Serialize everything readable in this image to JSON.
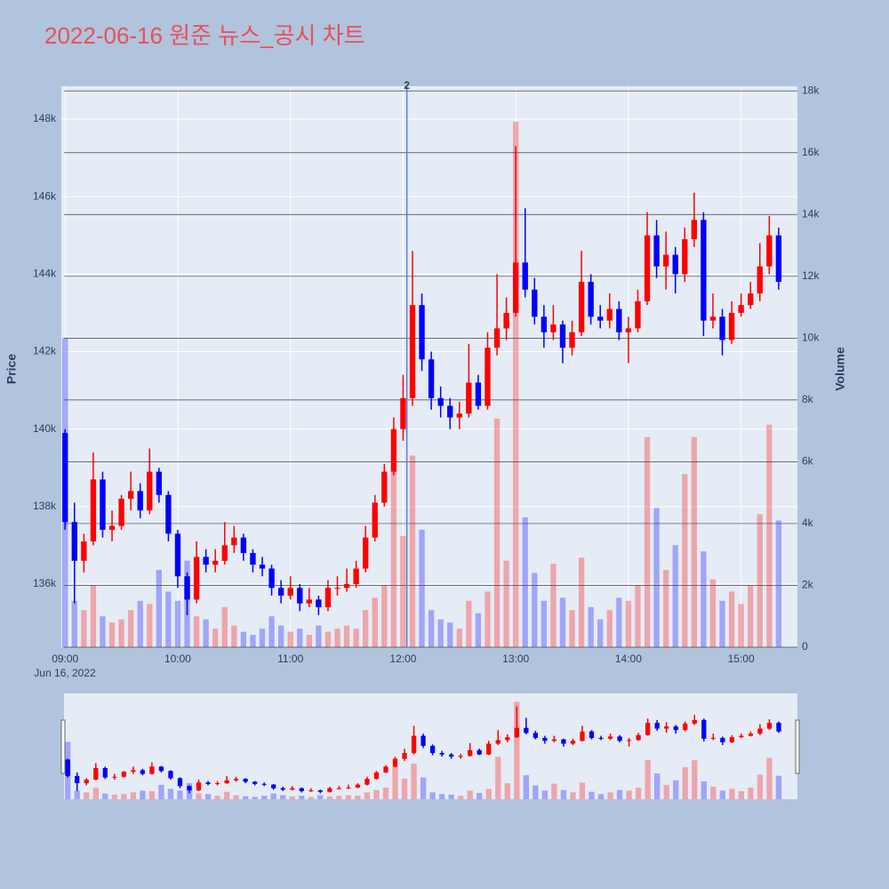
{
  "chart_data": {
    "type": "candlestick",
    "title": "2022-06-16 원준 뉴스_공시 차트",
    "y_title": "Price",
    "y2_title": "Volume",
    "x_sublabel": "Jun 16, 2022",
    "x": [
      "09:00",
      "09:05",
      "09:10",
      "09:15",
      "09:20",
      "09:25",
      "09:30",
      "09:35",
      "09:40",
      "09:45",
      "09:50",
      "09:55",
      "10:00",
      "10:05",
      "10:10",
      "10:15",
      "10:20",
      "10:25",
      "10:30",
      "10:35",
      "10:40",
      "10:45",
      "10:50",
      "10:55",
      "11:00",
      "11:05",
      "11:10",
      "11:15",
      "11:20",
      "11:25",
      "11:30",
      "11:35",
      "11:40",
      "11:45",
      "11:50",
      "11:55",
      "12:00",
      "12:05",
      "12:10",
      "12:15",
      "12:20",
      "12:25",
      "12:30",
      "12:35",
      "12:40",
      "12:45",
      "12:50",
      "12:55",
      "13:00",
      "13:05",
      "13:10",
      "13:15",
      "13:20",
      "13:25",
      "13:30",
      "13:35",
      "13:40",
      "13:45",
      "13:50",
      "13:55",
      "14:00",
      "14:05",
      "14:10",
      "14:15",
      "14:20",
      "14:25",
      "14:30",
      "14:35",
      "14:40",
      "14:45",
      "14:50",
      "14:55",
      "15:00",
      "15:05",
      "15:10",
      "15:15",
      "15:20"
    ],
    "open": [
      139900,
      137600,
      136600,
      137100,
      138700,
      137400,
      137500,
      138200,
      138400,
      137900,
      138900,
      138300,
      137300,
      136200,
      135600,
      136700,
      136500,
      136600,
      137000,
      137200,
      136800,
      136500,
      136400,
      135900,
      135700,
      135900,
      135500,
      135600,
      135400,
      135900,
      135900,
      136000,
      136400,
      137200,
      138100,
      138900,
      140000,
      140800,
      143200,
      141800,
      140800,
      140600,
      140300,
      140400,
      141200,
      140600,
      142100,
      142600,
      143000,
      144300,
      143600,
      142900,
      142500,
      142700,
      142100,
      142500,
      143800,
      142900,
      142800,
      143100,
      142500,
      142600,
      143300,
      145000,
      144200,
      144500,
      144000,
      144900,
      145400,
      142800,
      142900,
      142300,
      143000,
      143200,
      143500,
      144200,
      145000
    ],
    "high": [
      140000,
      138100,
      137300,
      139400,
      138900,
      137900,
      138300,
      138900,
      138600,
      139500,
      139000,
      138400,
      137400,
      136300,
      137100,
      136900,
      136900,
      137600,
      137500,
      137300,
      136900,
      136700,
      136500,
      136100,
      136200,
      136000,
      135900,
      135700,
      136100,
      136200,
      136400,
      136600,
      137500,
      138300,
      139100,
      140300,
      141400,
      144600,
      143500,
      142000,
      141100,
      140800,
      140700,
      142200,
      141400,
      142500,
      144000,
      143400,
      147300,
      145700,
      143900,
      143200,
      143200,
      142800,
      142800,
      144600,
      144000,
      143200,
      143500,
      143300,
      142900,
      143600,
      145600,
      145400,
      145100,
      144700,
      145200,
      146100,
      145600,
      143500,
      143100,
      143300,
      143500,
      143800,
      144800,
      145500,
      145200
    ],
    "low": [
      137400,
      135500,
      136300,
      137000,
      137200,
      137100,
      137400,
      137900,
      137700,
      137800,
      138100,
      137100,
      135900,
      135200,
      135500,
      136300,
      136300,
      136500,
      136800,
      136600,
      136300,
      136200,
      135700,
      135500,
      135600,
      135300,
      135400,
      135200,
      135300,
      135700,
      135800,
      135900,
      136300,
      137100,
      138000,
      138800,
      139700,
      140600,
      141500,
      140500,
      140300,
      140000,
      140000,
      140300,
      140500,
      140500,
      141900,
      142300,
      142900,
      143400,
      142700,
      142100,
      142300,
      141700,
      141900,
      142400,
      142700,
      142600,
      142600,
      142300,
      141700,
      142500,
      143200,
      143900,
      143600,
      143500,
      143800,
      144700,
      142400,
      142600,
      141900,
      142200,
      142900,
      143100,
      143300,
      144000,
      143600
    ],
    "close": [
      137600,
      136600,
      137100,
      138700,
      137400,
      137500,
      138200,
      138400,
      137900,
      138900,
      138300,
      137300,
      136200,
      135600,
      136700,
      136500,
      136600,
      137000,
      137200,
      136800,
      136500,
      136400,
      135900,
      135700,
      135900,
      135500,
      135600,
      135400,
      135900,
      135900,
      136000,
      136400,
      137200,
      138100,
      138900,
      140000,
      140800,
      143200,
      141800,
      140800,
      140600,
      140300,
      140400,
      141200,
      140600,
      142100,
      142600,
      143000,
      144300,
      143600,
      142900,
      142500,
      142700,
      142100,
      142500,
      143800,
      142900,
      142800,
      143100,
      142500,
      142600,
      143300,
      145000,
      144200,
      144500,
      144000,
      144900,
      145400,
      142800,
      142900,
      142300,
      143000,
      143200,
      143500,
      144200,
      145000,
      143800
    ],
    "volume": [
      10000,
      1500,
      1200,
      2000,
      1000,
      800,
      900,
      1200,
      1500,
      1400,
      2500,
      1800,
      1500,
      2800,
      1000,
      900,
      600,
      1300,
      700,
      500,
      400,
      600,
      1000,
      700,
      500,
      600,
      400,
      700,
      500,
      600,
      700,
      600,
      1200,
      1600,
      2000,
      5700,
      3600,
      6200,
      3800,
      1200,
      900,
      800,
      600,
      1500,
      1100,
      1800,
      7400,
      2800,
      17000,
      4200,
      2400,
      1500,
      2700,
      1600,
      1200,
      2900,
      1300,
      900,
      1200,
      1600,
      1500,
      2000,
      6800,
      4500,
      2500,
      3300,
      5600,
      6800,
      3100,
      2200,
      1500,
      1800,
      1400,
      2000,
      4300,
      7200,
      4100
    ],
    "increasing_color": "#ff0000",
    "decreasing_color": "#0000ff",
    "volume_increasing_color": "rgba(255,0,0,0.3)",
    "volume_decreasing_color": "rgba(0,0,255,0.3)",
    "xlim": [
      "08:58",
      "15:30"
    ],
    "xticks": [
      "09:00",
      "10:00",
      "11:00",
      "12:00",
      "13:00",
      "14:00",
      "15:00"
    ],
    "ylim": [
      134370,
      148850
    ],
    "yticks": [
      {
        "value": 136000,
        "label": "136k"
      },
      {
        "value": 138000,
        "label": "138k"
      },
      {
        "value": 140000,
        "label": "140k"
      },
      {
        "value": 142000,
        "label": "142k"
      },
      {
        "value": 144000,
        "label": "144k"
      },
      {
        "value": 146000,
        "label": "146k"
      },
      {
        "value": 148000,
        "label": "148k"
      }
    ],
    "y2lim": [
      0,
      18150
    ],
    "y2ticks": [
      0,
      {
        "value": 2000,
        "label": "2k"
      },
      {
        "value": 4000,
        "label": "4k"
      },
      {
        "value": 6000,
        "label": "6k"
      },
      {
        "value": 8000,
        "label": "8k"
      },
      {
        "value": 10000,
        "label": "10k"
      },
      {
        "value": 12000,
        "label": "12k"
      },
      {
        "value": 14000,
        "label": "14k"
      },
      {
        "value": 16000,
        "label": "16k"
      },
      {
        "value": 18000,
        "label": "18k"
      }
    ],
    "grid": true,
    "annotations": [
      {
        "x": "12:02",
        "text": "2"
      }
    ]
  }
}
